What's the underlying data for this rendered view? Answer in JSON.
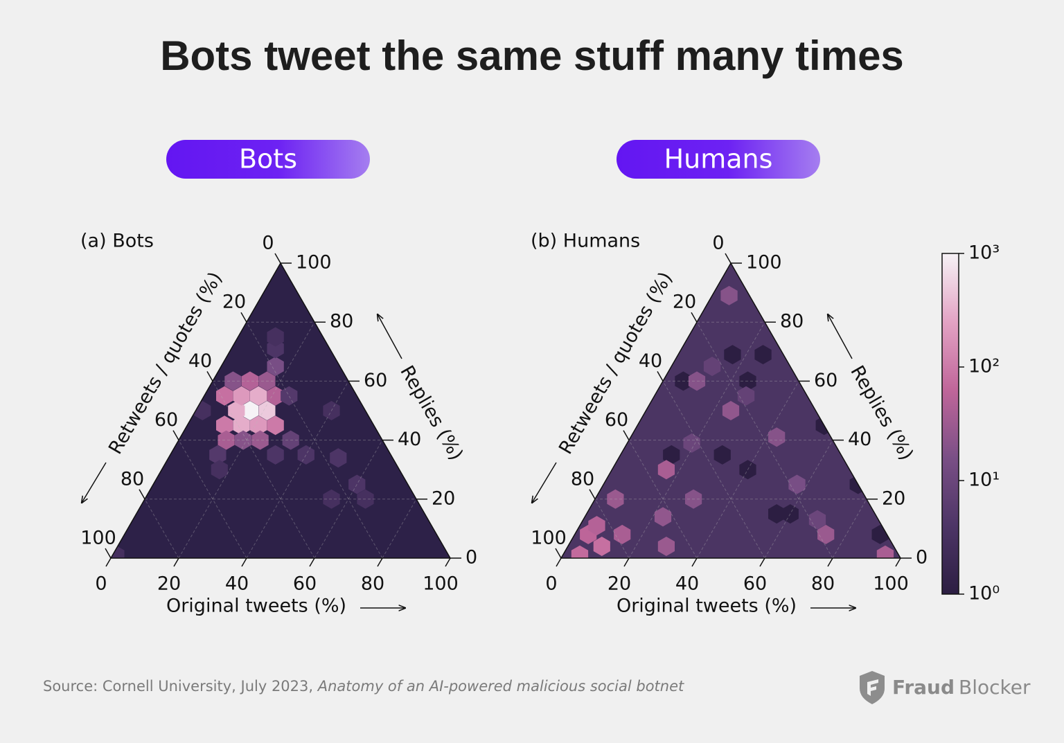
{
  "title": "Bots tweet the same stuff many times",
  "source": {
    "text": "Source: Cornell University, July 2023, ",
    "italic": "Anatomy of an AI-powered malicious social botnet"
  },
  "brand": {
    "bold": "Fraud",
    "light": "Blocker"
  },
  "colorbar": {
    "scale": "log",
    "lim": [
      1,
      1000
    ],
    "ticks": [
      {
        "value": 1,
        "label": "10⁰"
      },
      {
        "value": 10,
        "label": "10¹"
      },
      {
        "value": 100,
        "label": "10²"
      },
      {
        "value": 1000,
        "label": "10³"
      }
    ],
    "colormap": [
      "#2c1e42",
      "#4d3566",
      "#7a4f86",
      "#c0669a",
      "#e3a3c4",
      "#f6f2f6"
    ]
  },
  "chart_data": [
    {
      "type": "ternary-hexbin",
      "badge": "Bots",
      "title": "(a) Bots",
      "fill": "#2d2148",
      "bottom_axis": {
        "label": "Original tweets (%)",
        "lim": [
          0,
          100
        ],
        "ticks": [
          0,
          20,
          40,
          60,
          80,
          100
        ]
      },
      "right_axis": {
        "label": "Replies (%)",
        "lim": [
          0,
          100
        ],
        "ticks": [
          0,
          20,
          40,
          60,
          80,
          100
        ]
      },
      "left_axis": {
        "label": "Retweets / quotes (%)",
        "lim": [
          0,
          100
        ],
        "ticks": [
          0,
          20,
          40,
          60,
          80,
          100
        ]
      },
      "cells": {
        "original": [
          16,
          21,
          12,
          16,
          21,
          11,
          26,
          11,
          16,
          21,
          6,
          11,
          16,
          6,
          16,
          25,
          19,
          14,
          24,
          33,
          14,
          31,
          40,
          50,
          40,
          13,
          11,
          2,
          55,
          60,
          65,
          17,
          1
        ],
        "replies": [
          50,
          50,
          50,
          45,
          45,
          45,
          45,
          55,
          55,
          55,
          55,
          60,
          60,
          60,
          65,
          55,
          40,
          40,
          40,
          40,
          35,
          35,
          35,
          34,
          50,
          71,
          75,
          50,
          20,
          25,
          20,
          30,
          1
        ],
        "counts": [
          1000,
          500,
          300,
          300,
          200,
          100,
          100,
          200,
          300,
          50,
          80,
          50,
          30,
          20,
          15,
          5,
          20,
          40,
          30,
          8,
          5,
          4,
          4,
          4,
          3,
          4,
          3,
          3,
          3,
          4,
          3,
          3,
          3
        ]
      }
    },
    {
      "type": "ternary-hexbin",
      "badge": "Humans",
      "title": "(b) Humans",
      "fill": "#4b3563",
      "bottom_axis": {
        "label": "Original tweets (%)",
        "lim": [
          0,
          100
        ],
        "ticks": [
          0,
          20,
          40,
          60,
          80,
          100
        ]
      },
      "right_axis": {
        "label": "Replies (%)",
        "lim": [
          0,
          100
        ],
        "ticks": [
          0,
          20,
          40,
          60,
          80,
          100
        ]
      },
      "left_axis": {
        "label": "Retweets / quotes (%)",
        "lim": [
          0,
          100
        ],
        "ticks": [
          0,
          20,
          40,
          60,
          80,
          100
        ]
      },
      "cells": {
        "original": [
          16,
          25,
          6,
          25,
          15,
          30,
          40,
          56,
          60,
          55,
          90,
          75,
          5,
          16,
          25,
          10,
          4,
          10,
          5,
          14,
          29,
          74,
          95,
          43,
          57,
          23,
          29,
          6,
          5,
          12,
          27,
          19,
          69
        ],
        "replies": [
          69,
          69,
          60,
          60,
          35,
          35,
          30,
          15,
          15,
          45,
          8,
          25,
          89,
          30,
          50,
          60,
          8,
          4,
          1,
          8,
          4,
          8,
          1,
          41,
          25,
          14,
          20,
          20,
          11,
          65,
          55,
          39,
          13
        ],
        "counts": [
          1,
          1,
          1,
          1,
          1,
          1,
          1,
          1,
          1,
          1,
          1,
          1,
          20,
          40,
          25,
          20,
          60,
          80,
          70,
          40,
          30,
          30,
          40,
          20,
          15,
          25,
          20,
          30,
          50,
          8,
          8,
          10,
          10
        ]
      }
    }
  ]
}
